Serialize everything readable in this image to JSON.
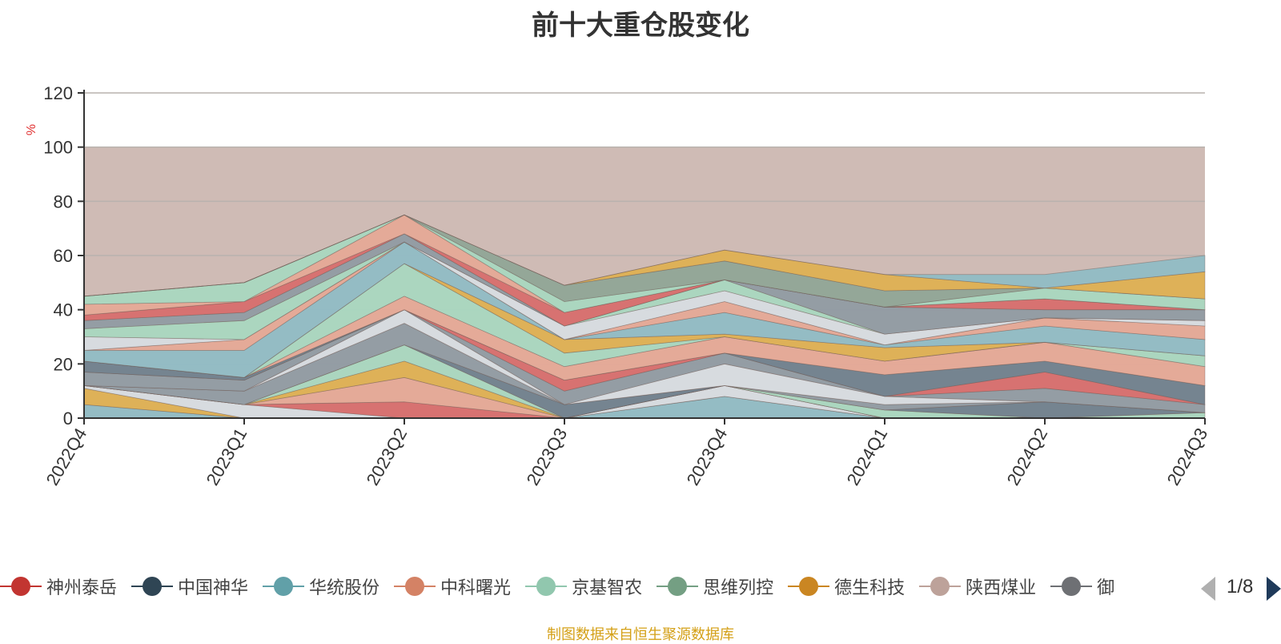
{
  "chart_data": {
    "type": "area",
    "title": "前十大重仓股变化",
    "ylabel": "%",
    "ylim": [
      0,
      120
    ],
    "yticks": [
      0,
      20,
      40,
      60,
      80,
      100,
      120
    ],
    "categories": [
      "2022Q4",
      "2023Q1",
      "2023Q2",
      "2023Q3",
      "2023Q4",
      "2024Q1",
      "2024Q2",
      "2024Q3"
    ],
    "background_band": {
      "from": 0,
      "to": 100,
      "color": "#cfbbb5"
    },
    "grid": true,
    "legend_position": "bottom",
    "legend_page": "1/8",
    "layers": [
      {
        "color": "#8fbcc6",
        "lower": [
          0,
          0,
          0,
          0,
          0,
          0,
          0,
          0
        ],
        "upper": [
          5,
          0,
          0,
          0,
          8,
          0,
          0,
          0
        ]
      },
      {
        "color": "#e0b050",
        "lower": [
          5,
          0,
          0,
          0,
          8,
          0,
          0,
          0
        ],
        "upper": [
          11,
          0,
          0,
          0,
          8,
          0,
          0,
          0
        ]
      },
      {
        "color": "#d8dde3",
        "lower": [
          11,
          0,
          0,
          0,
          8,
          0,
          0,
          0
        ],
        "upper": [
          12,
          5,
          0,
          0,
          12,
          0,
          0,
          0
        ]
      },
      {
        "color": "#d86b6b",
        "lower": [
          12,
          5,
          0,
          0,
          12,
          0,
          0,
          0
        ],
        "upper": [
          12,
          5,
          6,
          0,
          12,
          0,
          0,
          0
        ]
      },
      {
        "color": "#e6a896",
        "lower": [
          12,
          5,
          6,
          0,
          12,
          0,
          0,
          0
        ],
        "upper": [
          12,
          5,
          15,
          0,
          12,
          0,
          0,
          0
        ]
      },
      {
        "color": "#e0b050",
        "lower": [
          12,
          5,
          15,
          0,
          12,
          0,
          0,
          0
        ],
        "upper": [
          12,
          5,
          21,
          0,
          12,
          0,
          0,
          0
        ]
      },
      {
        "color": "#a8d8c0",
        "lower": [
          12,
          5,
          21,
          0,
          12,
          0,
          0,
          0
        ],
        "upper": [
          12,
          5,
          27,
          0,
          12,
          3,
          0,
          2
        ]
      },
      {
        "color": "#6e7f8d",
        "lower": [
          12,
          5,
          27,
          0,
          12,
          3,
          0,
          2
        ],
        "upper": [
          12,
          5,
          27,
          5,
          12,
          3,
          6,
          2
        ]
      },
      {
        "color": "#8f9aa3",
        "lower": [
          12,
          5,
          27,
          5,
          12,
          3,
          6,
          2
        ],
        "upper": [
          12,
          10,
          35,
          5,
          12,
          5,
          6,
          2
        ]
      },
      {
        "color": "#d8dde3",
        "lower": [
          12,
          10,
          35,
          5,
          12,
          5,
          6,
          2
        ],
        "upper": [
          12,
          10,
          40,
          5,
          20,
          8,
          6,
          2
        ]
      },
      {
        "color": "#8f9aa3",
        "lower": [
          12,
          10,
          40,
          5,
          20,
          8,
          6,
          2
        ],
        "upper": [
          17,
          14,
          40,
          10,
          24,
          8,
          11,
          5
        ]
      },
      {
        "color": "#d86b6b",
        "lower": [
          17,
          14,
          40,
          10,
          24,
          8,
          11,
          5
        ],
        "upper": [
          17,
          14,
          40,
          14,
          24,
          8,
          17,
          5
        ]
      },
      {
        "color": "#6e7f8d",
        "lower": [
          17,
          14,
          40,
          14,
          24,
          8,
          17,
          5
        ],
        "upper": [
          21,
          15,
          40,
          14,
          24,
          16,
          21,
          12
        ]
      },
      {
        "color": "#e6a896",
        "lower": [
          21,
          15,
          40,
          14,
          24,
          16,
          21,
          12
        ],
        "upper": [
          21,
          15,
          45,
          19,
          30,
          21,
          28,
          19
        ]
      },
      {
        "color": "#a8d8c0",
        "lower": [
          21,
          15,
          45,
          19,
          30,
          21,
          28,
          19
        ],
        "upper": [
          21,
          15,
          57,
          24,
          30,
          21,
          28,
          23
        ]
      },
      {
        "color": "#e0b050",
        "lower": [
          21,
          15,
          57,
          24,
          30,
          21,
          28,
          23
        ],
        "upper": [
          21,
          15,
          57,
          29,
          31,
          26,
          28,
          23
        ]
      },
      {
        "color": "#8fbcc6",
        "lower": [
          21,
          15,
          57,
          29,
          31,
          26,
          28,
          23
        ],
        "upper": [
          25,
          25,
          65,
          29,
          39,
          27,
          34,
          29
        ]
      },
      {
        "color": "#e6a896",
        "lower": [
          25,
          25,
          65,
          29,
          39,
          27,
          34,
          29
        ],
        "upper": [
          25,
          29,
          65,
          29,
          43,
          27,
          37,
          34
        ]
      },
      {
        "color": "#d8dde3",
        "lower": [
          25,
          29,
          65,
          29,
          43,
          27,
          37,
          34
        ],
        "upper": [
          30,
          29,
          65,
          34,
          47,
          31,
          37,
          36
        ]
      },
      {
        "color": "#a8d8c0",
        "lower": [
          30,
          29,
          65,
          34,
          47,
          31,
          37,
          36
        ],
        "upper": [
          33,
          36,
          65,
          34,
          51,
          31,
          37,
          36
        ]
      },
      {
        "color": "#8f9aa3",
        "lower": [
          33,
          36,
          65,
          34,
          51,
          31,
          37,
          36
        ],
        "upper": [
          36,
          39,
          68,
          34,
          51,
          41,
          40,
          40
        ]
      },
      {
        "color": "#d86b6b",
        "lower": [
          36,
          39,
          68,
          34,
          51,
          41,
          40,
          40
        ],
        "upper": [
          38,
          43,
          68,
          39,
          51,
          41,
          44,
          40
        ]
      },
      {
        "color": "#e6a896",
        "lower": [
          38,
          43,
          68,
          39,
          51,
          41,
          44,
          40
        ],
        "upper": [
          42,
          43,
          75,
          39,
          51,
          41,
          44,
          40
        ]
      },
      {
        "color": "#a8d8c0",
        "lower": [
          42,
          43,
          75,
          39,
          51,
          41,
          44,
          40
        ],
        "upper": [
          45,
          50,
          75,
          43,
          51,
          41,
          48,
          44
        ]
      },
      {
        "color": "#8fa596",
        "lower": [
          45,
          50,
          75,
          43,
          51,
          41,
          48,
          44
        ],
        "upper": [
          45,
          50,
          75,
          49,
          58,
          47,
          48,
          44
        ]
      },
      {
        "color": "#e0b050",
        "lower": [
          45,
          50,
          75,
          49,
          58,
          47,
          48,
          44
        ],
        "upper": [
          45,
          50,
          75,
          49,
          62,
          53,
          48,
          54
        ]
      },
      {
        "color": "#8fbcc6",
        "lower": [
          45,
          50,
          75,
          49,
          62,
          53,
          48,
          54
        ],
        "upper": [
          45,
          50,
          75,
          49,
          62,
          53,
          53,
          60
        ]
      }
    ],
    "series": [
      {
        "name": "神州泰岳",
        "color": "#c23531"
      },
      {
        "name": "中国神华",
        "color": "#2f4554"
      },
      {
        "name": "华统股份",
        "color": "#61a0a8"
      },
      {
        "name": "中科曙光",
        "color": "#d48265"
      },
      {
        "name": "京基智农",
        "color": "#91c7ae"
      },
      {
        "name": "思维列控",
        "color": "#749f83"
      },
      {
        "name": "德生科技",
        "color": "#ca8622"
      },
      {
        "name": "陕西煤业",
        "color": "#bda29a"
      },
      {
        "name": "御",
        "color": "#6e7074"
      }
    ]
  },
  "source_note": "制图数据来自恒生聚源数据库"
}
